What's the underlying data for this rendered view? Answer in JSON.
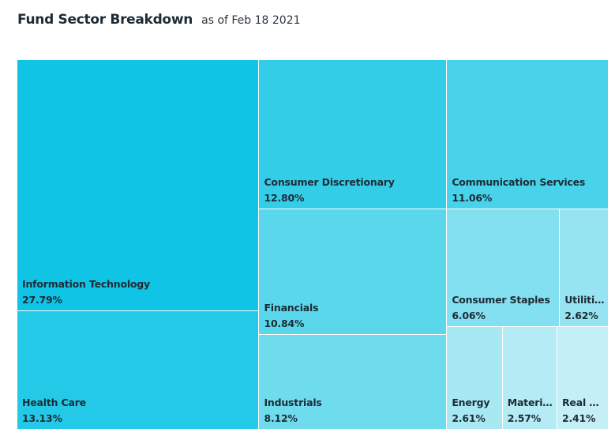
{
  "header": {
    "title": "Fund Sector Breakdown",
    "as_of": "as of Feb 18 2021"
  },
  "chart_data": {
    "type": "treemap",
    "title": "Fund Sector Breakdown",
    "subtitle": "as of Feb 18 2021",
    "unit": "%",
    "items": [
      {
        "name": "Information Technology",
        "value": 27.79,
        "label": "27.79%",
        "color": "#0fc4e4"
      },
      {
        "name": "Health Care",
        "value": 13.13,
        "label": "13.13%",
        "color": "#23c9e7"
      },
      {
        "name": "Consumer Discretionary",
        "value": 12.8,
        "label": "12.80%",
        "color": "#34cde8"
      },
      {
        "name": "Communication Services",
        "value": 11.06,
        "label": "11.06%",
        "color": "#48d3ea"
      },
      {
        "name": "Financials",
        "value": 10.84,
        "label": "10.84%",
        "color": "#5bd7ec"
      },
      {
        "name": "Industrials",
        "value": 8.12,
        "label": "8.12%",
        "color": "#6fdcee"
      },
      {
        "name": "Consumer Staples",
        "value": 6.06,
        "label": "6.06%",
        "color": "#82e0f0"
      },
      {
        "name": "Utilities",
        "value": 2.62,
        "label": "2.62%",
        "color": "#96e4f2"
      },
      {
        "name": "Energy",
        "value": 2.61,
        "label": "2.61%",
        "color": "#a7e8f3"
      },
      {
        "name": "Materials",
        "value": 2.57,
        "label": "2.57%",
        "color": "#b4ebf4"
      },
      {
        "name": "Real Estate",
        "display_name": "Real Es...",
        "value": 2.41,
        "label": "2.41%",
        "color": "#c4eff6"
      }
    ]
  }
}
